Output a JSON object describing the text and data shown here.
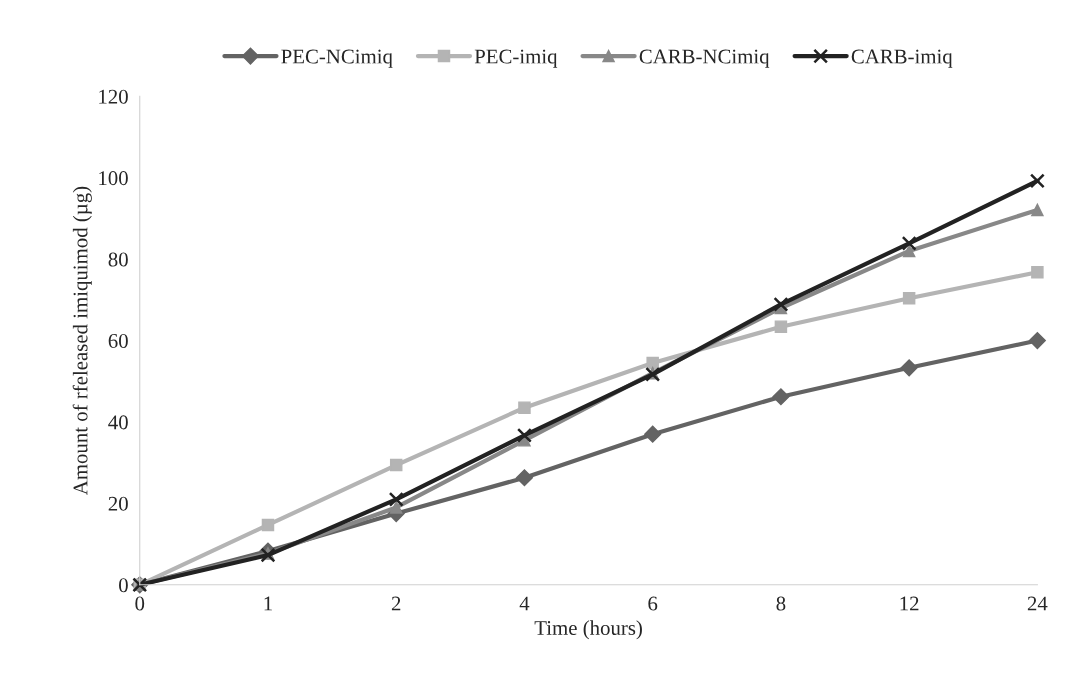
{
  "chart_data": {
    "type": "line",
    "xlabel": "Time (hours)",
    "ylabel": "Amount of rfeleased imiquimod (µg)",
    "categories": [
      "0",
      "1",
      "2",
      "4",
      "6",
      "8",
      "12",
      "24"
    ],
    "series": [
      {
        "name": "PEC-NCimiq",
        "color": "#636363",
        "marker": "diamond",
        "values": [
          0,
          8.3,
          17.5,
          26.3,
          37,
          46.2,
          53.3,
          60
        ]
      },
      {
        "name": "PEC-imiq",
        "color": "#b4b4b4",
        "marker": "square",
        "values": [
          0,
          14.7,
          29.4,
          43.5,
          54.5,
          63.4,
          70.4,
          76.8
        ]
      },
      {
        "name": "CARB-NCimiq",
        "color": "#888888",
        "marker": "triangle",
        "values": [
          0,
          7.7,
          19,
          35.5,
          52,
          68,
          82,
          92.1
        ]
      },
      {
        "name": "CARB-imiq",
        "color": "#222222",
        "marker": "cross",
        "values": [
          0,
          7.3,
          21,
          36.7,
          51.7,
          68.9,
          83.9,
          99.2
        ]
      }
    ],
    "ylim": [
      0,
      120
    ],
    "yticks": [
      0,
      20,
      40,
      60,
      80,
      100,
      120
    ],
    "grid": false,
    "legend": "top",
    "line_style": "solid"
  }
}
